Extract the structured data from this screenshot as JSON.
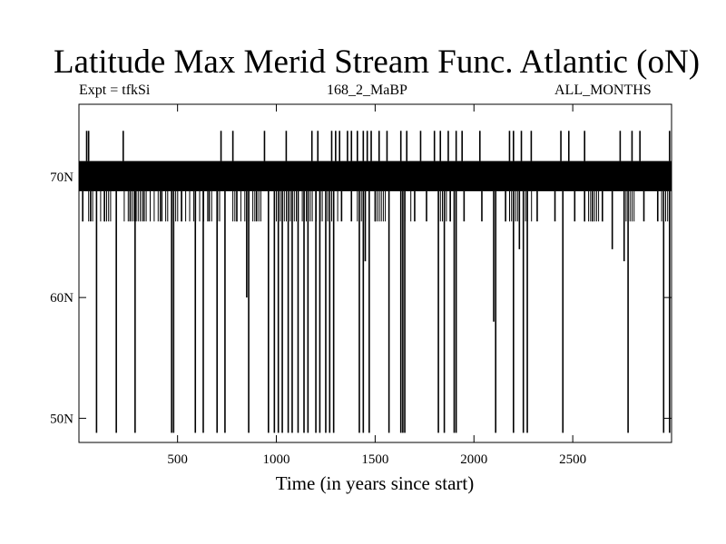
{
  "chart_data": {
    "type": "line",
    "title": "Latitude Max Merid Stream Func. Atlantic (oN)",
    "subtitle_left": "Expt = tfkSi",
    "subtitle_center": "168_2_MaBP",
    "subtitle_right": "ALL_MONTHS",
    "xlabel": "Time (in years since start)",
    "ylabel": "",
    "xlim": [
      1,
      3000
    ],
    "ylim": [
      48,
      76
    ],
    "x_ticks": [
      {
        "value": 500,
        "label": "500"
      },
      {
        "value": 1000,
        "label": "1000"
      },
      {
        "value": 1500,
        "label": "1500"
      },
      {
        "value": 2000,
        "label": "2000"
      },
      {
        "value": 2500,
        "label": "2500"
      }
    ],
    "y_ticks": [
      {
        "value": 50,
        "label": "50N"
      },
      {
        "value": 60,
        "label": "60N"
      },
      {
        "value": 70,
        "label": "70N"
      }
    ],
    "grid": false,
    "legend": "none",
    "color": "#000000",
    "series": [
      {
        "base_band": [
          68.8,
          71.3
        ],
        "levels": [
          66.3,
          68.8,
          71.3,
          73.8
        ],
        "band_lower_excursions": [
          [
            20,
            170
          ],
          [
            230,
            420
          ],
          [
            440,
            720
          ],
          [
            780,
            930
          ],
          [
            1000,
            1240
          ],
          [
            1260,
            1320
          ],
          [
            1400,
            1560
          ],
          [
            1620,
            1700
          ],
          [
            1820,
            1900
          ],
          [
            2160,
            2300
          ],
          [
            2560,
            2660
          ],
          [
            2760,
            2820
          ],
          [
            2950,
            3000
          ]
        ],
        "drops": [
          {
            "x": 20,
            "y": 66.3
          },
          {
            "x": 60,
            "y": 66.3
          },
          {
            "x": 90,
            "y": 48.8
          },
          {
            "x": 130,
            "y": 66.3
          },
          {
            "x": 190,
            "y": 48.8
          },
          {
            "x": 260,
            "y": 66.3
          },
          {
            "x": 285,
            "y": 48.8
          },
          {
            "x": 330,
            "y": 66.3
          },
          {
            "x": 420,
            "y": 66.3
          },
          {
            "x": 470,
            "y": 48.8
          },
          {
            "x": 480,
            "y": 48.8
          },
          {
            "x": 520,
            "y": 66.3
          },
          {
            "x": 590,
            "y": 48.8
          },
          {
            "x": 630,
            "y": 48.8
          },
          {
            "x": 660,
            "y": 66.3
          },
          {
            "x": 700,
            "y": 48.8
          },
          {
            "x": 740,
            "y": 48.8
          },
          {
            "x": 800,
            "y": 66.3
          },
          {
            "x": 850,
            "y": 60.0
          },
          {
            "x": 860,
            "y": 48.8
          },
          {
            "x": 900,
            "y": 66.3
          },
          {
            "x": 960,
            "y": 48.8
          },
          {
            "x": 990,
            "y": 48.8
          },
          {
            "x": 1010,
            "y": 48.8
          },
          {
            "x": 1030,
            "y": 48.8
          },
          {
            "x": 1060,
            "y": 48.8
          },
          {
            "x": 1080,
            "y": 48.8
          },
          {
            "x": 1110,
            "y": 48.8
          },
          {
            "x": 1140,
            "y": 48.8
          },
          {
            "x": 1160,
            "y": 48.8
          },
          {
            "x": 1200,
            "y": 48.8
          },
          {
            "x": 1220,
            "y": 48.8
          },
          {
            "x": 1250,
            "y": 48.8
          },
          {
            "x": 1270,
            "y": 48.8
          },
          {
            "x": 1290,
            "y": 48.8
          },
          {
            "x": 1330,
            "y": 66.3
          },
          {
            "x": 1380,
            "y": 66.3
          },
          {
            "x": 1420,
            "y": 48.8
          },
          {
            "x": 1440,
            "y": 48.8
          },
          {
            "x": 1450,
            "y": 63.0
          },
          {
            "x": 1470,
            "y": 48.8
          },
          {
            "x": 1500,
            "y": 66.3
          },
          {
            "x": 1570,
            "y": 48.8
          },
          {
            "x": 1630,
            "y": 48.8
          },
          {
            "x": 1640,
            "y": 48.8
          },
          {
            "x": 1650,
            "y": 48.8
          },
          {
            "x": 1700,
            "y": 66.3
          },
          {
            "x": 1760,
            "y": 66.3
          },
          {
            "x": 1820,
            "y": 48.8
          },
          {
            "x": 1850,
            "y": 48.8
          },
          {
            "x": 1880,
            "y": 66.3
          },
          {
            "x": 1900,
            "y": 48.8
          },
          {
            "x": 1910,
            "y": 48.8
          },
          {
            "x": 1950,
            "y": 66.3
          },
          {
            "x": 2040,
            "y": 66.3
          },
          {
            "x": 2100,
            "y": 58.0
          },
          {
            "x": 2110,
            "y": 48.8
          },
          {
            "x": 2160,
            "y": 66.3
          },
          {
            "x": 2200,
            "y": 48.8
          },
          {
            "x": 2230,
            "y": 64.0
          },
          {
            "x": 2250,
            "y": 48.8
          },
          {
            "x": 2270,
            "y": 48.8
          },
          {
            "x": 2320,
            "y": 66.3
          },
          {
            "x": 2410,
            "y": 66.3
          },
          {
            "x": 2450,
            "y": 48.8
          },
          {
            "x": 2510,
            "y": 66.3
          },
          {
            "x": 2560,
            "y": 66.3
          },
          {
            "x": 2600,
            "y": 66.3
          },
          {
            "x": 2650,
            "y": 66.3
          },
          {
            "x": 2700,
            "y": 64.0
          },
          {
            "x": 2760,
            "y": 63.0
          },
          {
            "x": 2780,
            "y": 48.8
          },
          {
            "x": 2860,
            "y": 66.3
          },
          {
            "x": 2930,
            "y": 66.3
          },
          {
            "x": 2960,
            "y": 48.8
          },
          {
            "x": 2990,
            "y": 48.8
          }
        ],
        "spikes": [
          {
            "x": 40,
            "y": 73.8
          },
          {
            "x": 50,
            "y": 73.8
          },
          {
            "x": 225,
            "y": 73.8
          },
          {
            "x": 720,
            "y": 73.8
          },
          {
            "x": 780,
            "y": 73.8
          },
          {
            "x": 940,
            "y": 73.8
          },
          {
            "x": 1050,
            "y": 73.8
          },
          {
            "x": 1180,
            "y": 73.8
          },
          {
            "x": 1210,
            "y": 73.8
          },
          {
            "x": 1280,
            "y": 73.8
          },
          {
            "x": 1300,
            "y": 73.8
          },
          {
            "x": 1320,
            "y": 73.8
          },
          {
            "x": 1360,
            "y": 73.8
          },
          {
            "x": 1380,
            "y": 73.8
          },
          {
            "x": 1410,
            "y": 73.8
          },
          {
            "x": 1440,
            "y": 73.8
          },
          {
            "x": 1460,
            "y": 73.8
          },
          {
            "x": 1480,
            "y": 73.8
          },
          {
            "x": 1520,
            "y": 73.8
          },
          {
            "x": 1560,
            "y": 73.8
          },
          {
            "x": 1630,
            "y": 73.8
          },
          {
            "x": 1660,
            "y": 73.8
          },
          {
            "x": 1730,
            "y": 73.8
          },
          {
            "x": 1800,
            "y": 73.8
          },
          {
            "x": 1830,
            "y": 73.8
          },
          {
            "x": 1870,
            "y": 73.8
          },
          {
            "x": 1910,
            "y": 73.8
          },
          {
            "x": 1940,
            "y": 73.8
          },
          {
            "x": 2030,
            "y": 73.8
          },
          {
            "x": 2180,
            "y": 73.8
          },
          {
            "x": 2200,
            "y": 73.8
          },
          {
            "x": 2240,
            "y": 73.8
          },
          {
            "x": 2290,
            "y": 73.8
          },
          {
            "x": 2440,
            "y": 73.8
          },
          {
            "x": 2480,
            "y": 73.8
          },
          {
            "x": 2560,
            "y": 73.8
          },
          {
            "x": 2740,
            "y": 73.8
          },
          {
            "x": 2800,
            "y": 73.8
          },
          {
            "x": 2840,
            "y": 73.8
          },
          {
            "x": 2990,
            "y": 73.8
          }
        ]
      }
    ]
  }
}
